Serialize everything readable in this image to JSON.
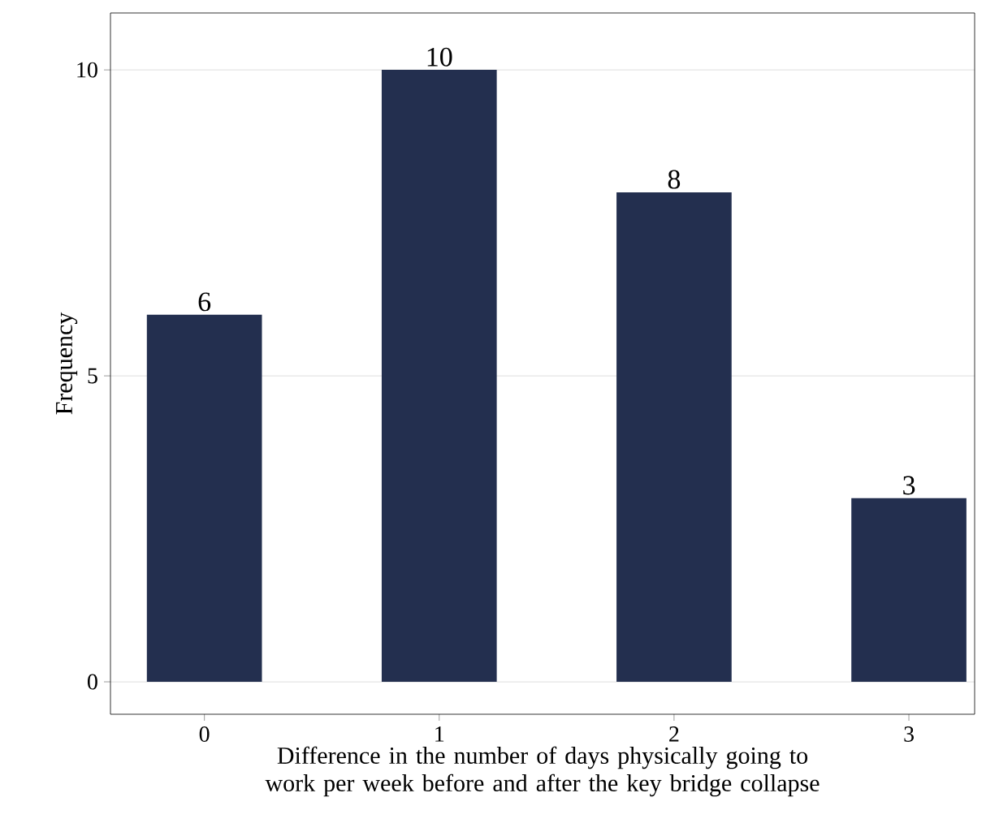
{
  "chart_data": {
    "type": "bar",
    "xlabel": "Difference in the number of days physically going to work per week before and after the key bridge collapse",
    "ylabel": "Frequency",
    "categories": [
      "0",
      "1",
      "2",
      "3"
    ],
    "values": [
      6,
      10,
      8,
      3
    ],
    "color": "#232f4f",
    "ylim": [
      -0.53,
      10.93
    ],
    "yticks": [
      0,
      5,
      10
    ],
    "grid": "y",
    "data_labels": true
  }
}
